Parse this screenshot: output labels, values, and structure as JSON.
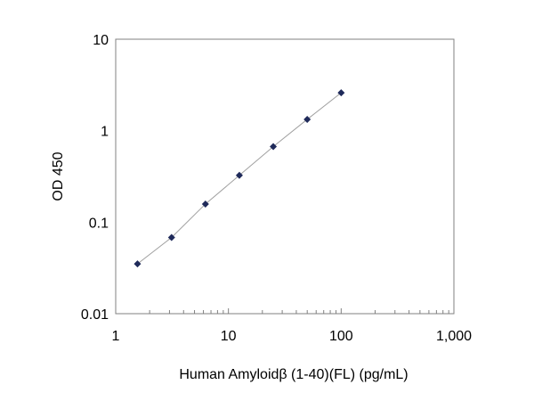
{
  "chart_data": {
    "type": "scatter",
    "title": "",
    "xlabel": "Human Amyloidβ (1-40)(FL)  (pg/mL)",
    "ylabel": "OD 450",
    "x_scale": "log",
    "y_scale": "log",
    "xlim": [
      1,
      1000
    ],
    "ylim": [
      0.01,
      10
    ],
    "x_ticks": [
      1,
      10,
      100,
      1000
    ],
    "x_tick_labels": [
      "1",
      "10",
      "100",
      "1,000"
    ],
    "y_ticks": [
      0.01,
      0.1,
      1,
      10
    ],
    "y_tick_labels": [
      "0.01",
      "0.1",
      "1",
      "10"
    ],
    "grid": false,
    "legend": "none",
    "marker_color": "#1f2a5a",
    "line_color": "#a0a0a0",
    "series": [
      {
        "x": [
          1.56,
          3.13,
          6.25,
          12.5,
          25,
          50,
          100
        ],
        "y": [
          0.035,
          0.068,
          0.158,
          0.325,
          0.67,
          1.33,
          2.6
        ]
      }
    ]
  }
}
